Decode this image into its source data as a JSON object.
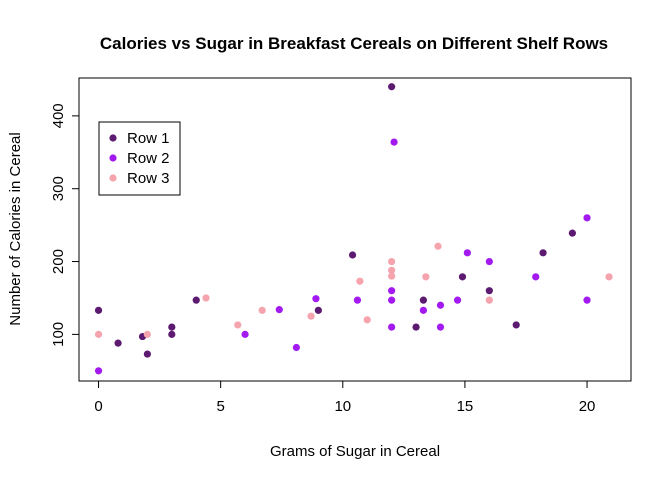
{
  "chart_data": {
    "type": "scatter",
    "title": "Calories vs Sugar in Breakfast Cereals on Different Shelf Rows",
    "xlabel": "Grams of Sugar in Cereal",
    "ylabel": "Number of Calories in Cereal",
    "xlim": [
      -0.8,
      21.8
    ],
    "ylim": [
      36,
      452
    ],
    "xticks": [
      0,
      5,
      10,
      15,
      20
    ],
    "yticks": [
      100,
      200,
      300,
      400
    ],
    "grid": false,
    "legend_position": "top-left",
    "series": [
      {
        "name": "Row 1",
        "color": "#5c1a70",
        "points": [
          [
            0,
            133
          ],
          [
            0.8,
            88
          ],
          [
            1.8,
            97
          ],
          [
            2,
            73
          ],
          [
            3,
            110
          ],
          [
            3,
            100
          ],
          [
            4,
            147
          ],
          [
            9,
            133
          ],
          [
            10.4,
            209
          ],
          [
            12,
            440
          ],
          [
            13,
            110
          ],
          [
            13.3,
            147
          ],
          [
            14.9,
            179
          ],
          [
            16,
            160
          ],
          [
            17.1,
            113
          ],
          [
            18.2,
            212
          ],
          [
            19.4,
            239
          ]
        ]
      },
      {
        "name": "Row 2",
        "color": "#a21af0",
        "points": [
          [
            0,
            50
          ],
          [
            6,
            100
          ],
          [
            7.4,
            134
          ],
          [
            8.1,
            82
          ],
          [
            8.9,
            149
          ],
          [
            10.6,
            147
          ],
          [
            12,
            110
          ],
          [
            12,
            147
          ],
          [
            12,
            160
          ],
          [
            12.1,
            364
          ],
          [
            13.3,
            133
          ],
          [
            14,
            140
          ],
          [
            14,
            110
          ],
          [
            14.7,
            147
          ],
          [
            15.1,
            212
          ],
          [
            16,
            200
          ],
          [
            17.9,
            179
          ],
          [
            20,
            260
          ],
          [
            20,
            147
          ]
        ]
      },
      {
        "name": "Row 3",
        "color": "#f5a3ad",
        "points": [
          [
            0,
            100
          ],
          [
            2,
            100
          ],
          [
            4.4,
            150
          ],
          [
            5.7,
            113
          ],
          [
            6.7,
            133
          ],
          [
            8.7,
            125
          ],
          [
            10.7,
            173
          ],
          [
            11,
            120
          ],
          [
            12,
            200
          ],
          [
            12,
            188
          ],
          [
            12,
            180
          ],
          [
            13.4,
            179
          ],
          [
            13.9,
            221
          ],
          [
            16,
            147
          ],
          [
            20.9,
            179
          ]
        ]
      }
    ]
  }
}
